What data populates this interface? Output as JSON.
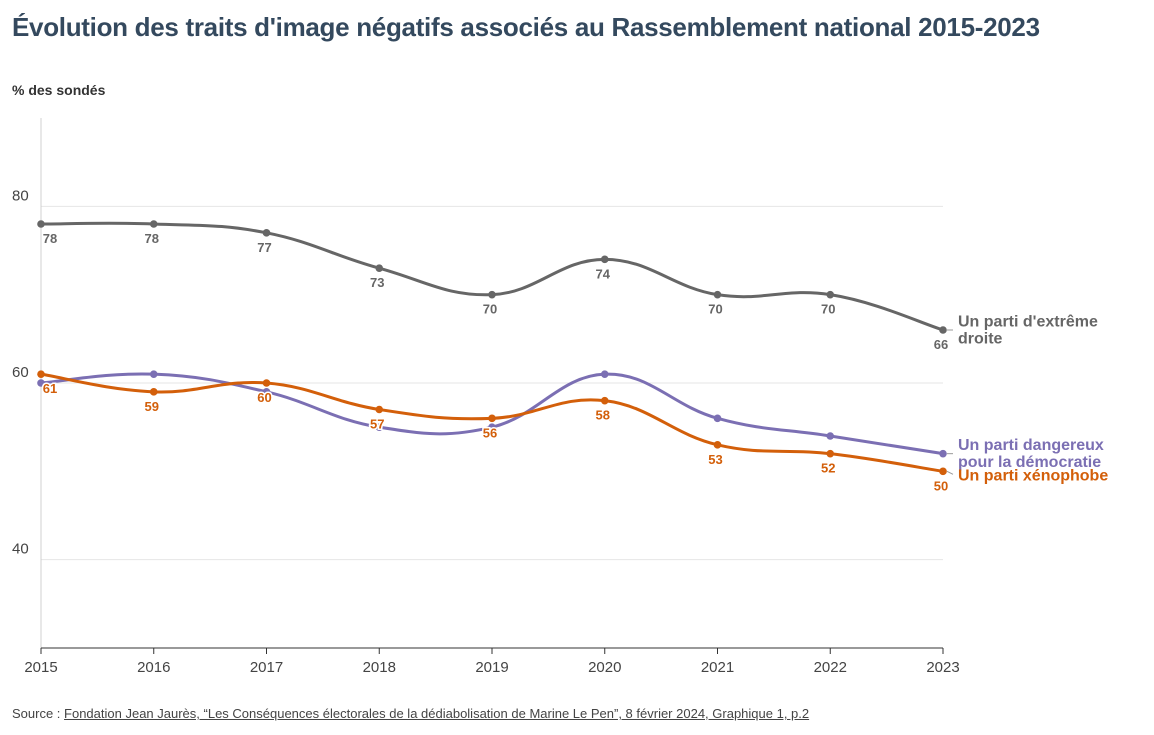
{
  "title": "Évolution des traits d'image négatifs associés au Rassemblement national 2015-2023",
  "unit_label": "% des sondés",
  "source": {
    "prefix": "Source : ",
    "link_text": "Fondation Jean Jaurès, “Les Conséquences électorales de la dédiabolisation de Marine Le Pen”, 8 février 2024, Graphique 1, p.2"
  },
  "chart_data": {
    "type": "line",
    "x": [
      2015,
      2016,
      2017,
      2018,
      2019,
      2020,
      2021,
      2022,
      2023
    ],
    "ylim": [
      30,
      90
    ],
    "yticks": [
      40,
      60,
      80
    ],
    "grid": true,
    "ylabel": "% des sondés",
    "series": [
      {
        "name": "Un parti d'extrême droite",
        "label_lines": [
          "Un parti d'extrême",
          "droite"
        ],
        "color": "#666666",
        "values": [
          78,
          78,
          77,
          73,
          70,
          74,
          70,
          70,
          66
        ],
        "labels_shown": [
          true,
          true,
          true,
          true,
          true,
          true,
          true,
          true,
          true
        ]
      },
      {
        "name": "Un parti dangereux pour la démocratie",
        "label_lines": [
          "Un parti dangereux",
          "pour la démocratie"
        ],
        "color": "#7b6fb3",
        "values": [
          60,
          61,
          59,
          55,
          55,
          61,
          56,
          54,
          52
        ],
        "labels_shown": [
          false,
          false,
          false,
          false,
          false,
          false,
          false,
          false,
          false
        ]
      },
      {
        "name": "Un parti xénophobe",
        "label_lines": [
          "Un parti xénophobe"
        ],
        "color": "#d35f0a",
        "values": [
          61,
          59,
          60,
          57,
          56,
          58,
          53,
          52,
          50
        ],
        "labels_shown": [
          true,
          true,
          true,
          true,
          true,
          true,
          true,
          true,
          true
        ]
      }
    ]
  }
}
